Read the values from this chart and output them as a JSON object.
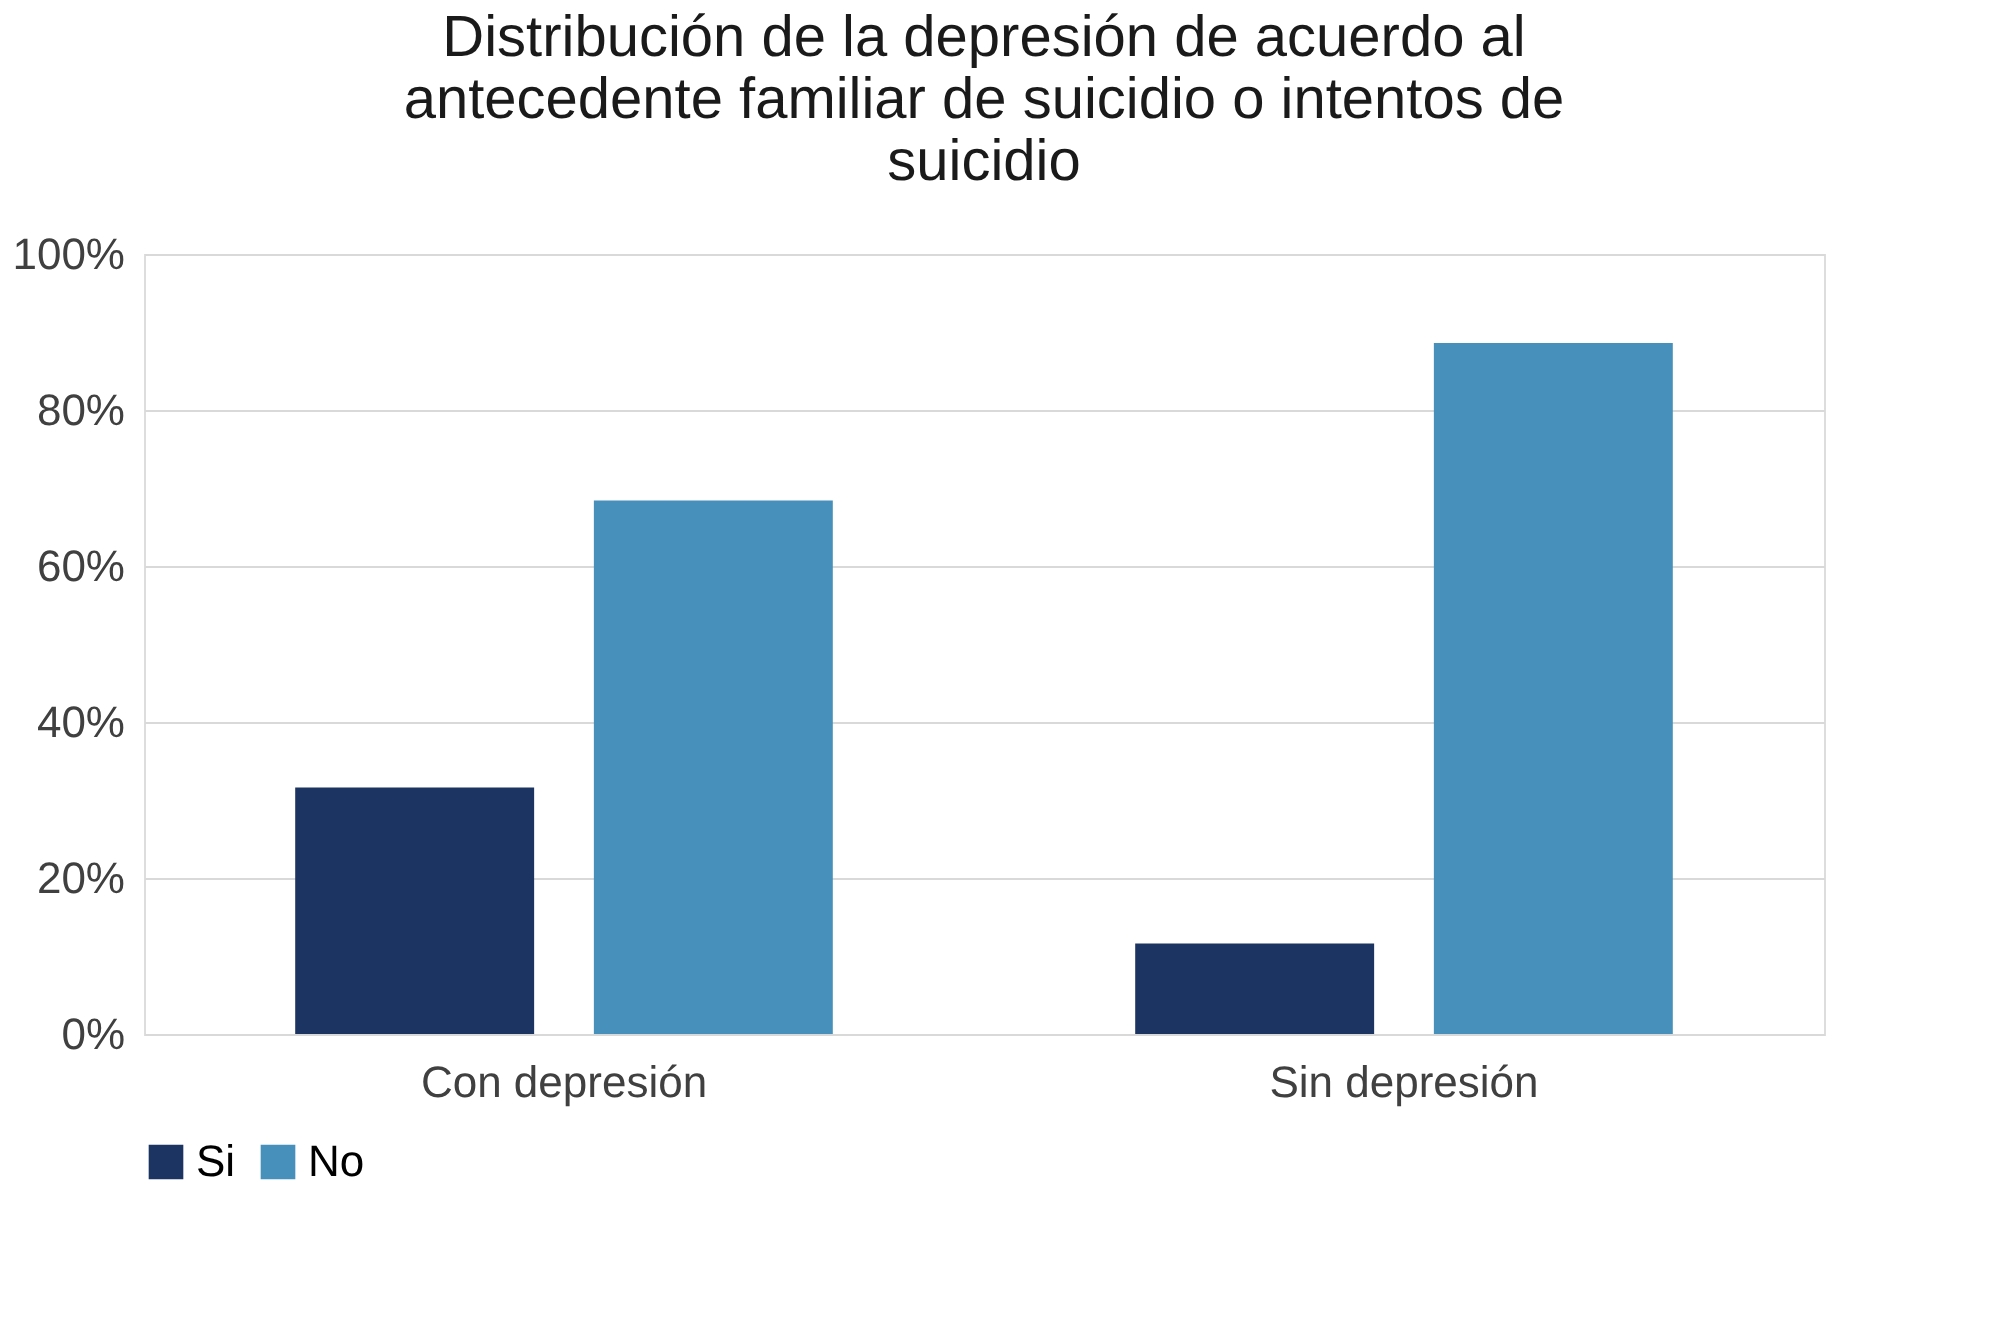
{
  "chart_data": {
    "type": "bar",
    "title": "Distribución de la depresión de acuerdo al antecedente familiar de suicidio o intentos de suicidio",
    "categories": [
      "Con depresión",
      "Sin depresión"
    ],
    "series": [
      {
        "name": "Si",
        "color": "#1c3461",
        "values": [
          31.6,
          11.6
        ]
      },
      {
        "name": "No",
        "color": "#4690bb",
        "values": [
          68.4,
          88.6
        ]
      }
    ],
    "ylim": [
      0,
      100
    ],
    "yticks": [
      {
        "value": 0,
        "label": "0%"
      },
      {
        "value": 20,
        "label": "20%"
      },
      {
        "value": 40,
        "label": "40%"
      },
      {
        "value": 60,
        "label": "60%"
      },
      {
        "value": 80,
        "label": "80%"
      },
      {
        "value": 100,
        "label": "100%"
      }
    ],
    "grid": "y",
    "legend": "bottom"
  }
}
